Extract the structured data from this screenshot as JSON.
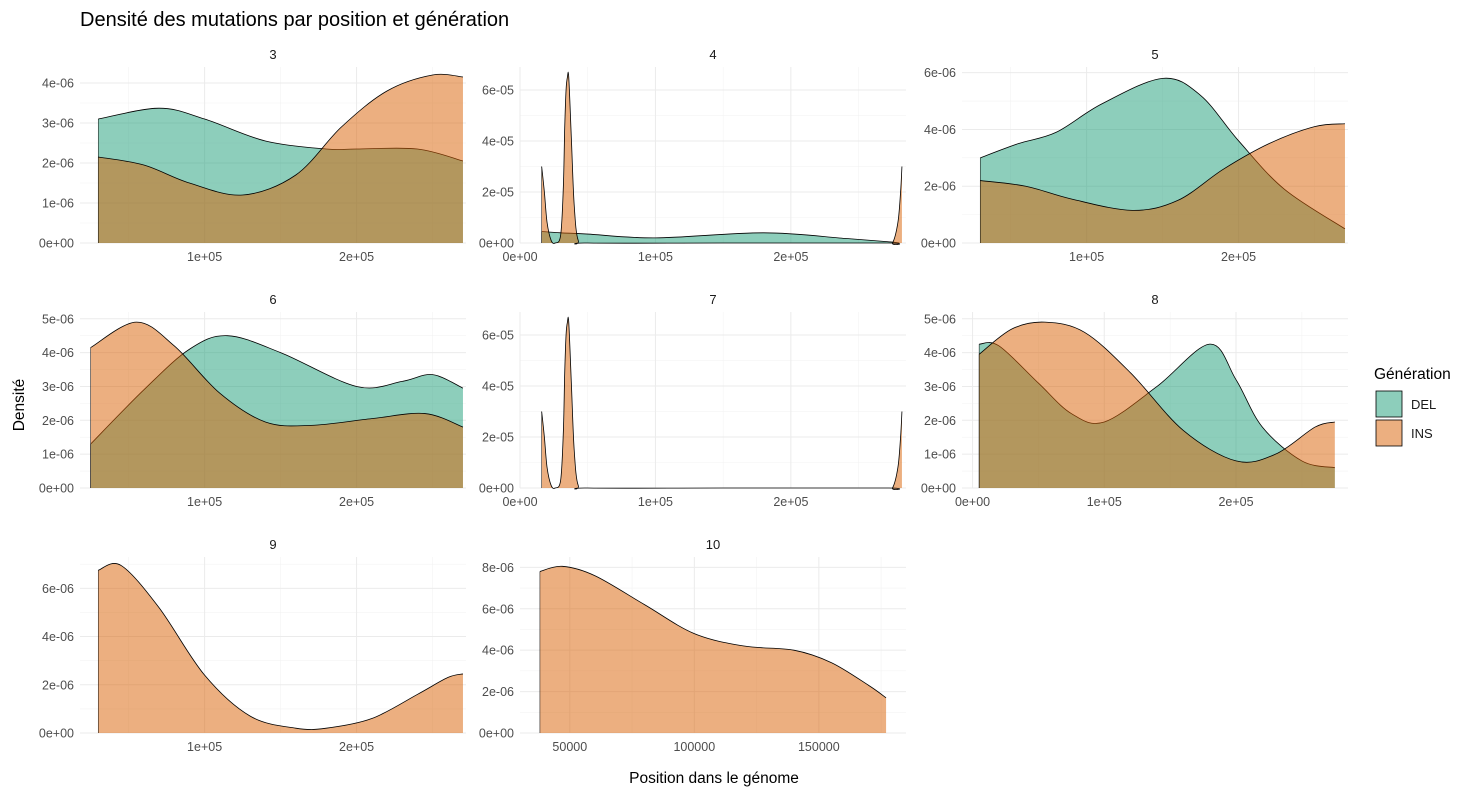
{
  "chart_data": {
    "type": "area",
    "subtype": "faceted density plot",
    "title": "Densité des mutations par position et génération",
    "xlabel": "Position dans le génome",
    "ylabel": "Densité",
    "legend": {
      "title": "Génération",
      "position": "right",
      "entries": [
        {
          "label": "DEL",
          "color": "#1b9e77"
        },
        {
          "label": "INS",
          "color": "#d95f02"
        }
      ]
    },
    "fill_opacity": 0.5,
    "colors": {
      "DEL": "#1b9e77",
      "INS": "#d95f02",
      "outline": "#000000",
      "grid": "#ebebeb"
    },
    "facets": [
      {
        "label": "3",
        "xlim": [
          18000,
          272000
        ],
        "ylim": [
          0,
          4.4e-06
        ],
        "x_ticks": [
          {
            "v": 100000,
            "label": "1e+05"
          },
          {
            "v": 200000,
            "label": "2e+05"
          }
        ],
        "y_ticks": [
          {
            "v": 0,
            "label": "0e+00"
          },
          {
            "v": 1e-06,
            "label": "1e-06"
          },
          {
            "v": 2e-06,
            "label": "2e-06"
          },
          {
            "v": 3e-06,
            "label": "3e-06"
          },
          {
            "v": 4e-06,
            "label": "4e-06"
          }
        ],
        "show_x_ticks": true,
        "series": [
          {
            "name": "DEL",
            "x": [
              30000,
              70000,
              100000,
              140000,
              180000,
              200000,
              240000,
              270000
            ],
            "y": [
              3.1e-06,
              3.37e-06,
              3.1e-06,
              2.55e-06,
              2.35e-06,
              2.35e-06,
              2.35e-06,
              2.05e-06
            ]
          },
          {
            "name": "INS",
            "x": [
              30000,
              60000,
              90000,
              125000,
              160000,
              190000,
              220000,
              250000,
              270000
            ],
            "y": [
              2.15e-06,
              1.95e-06,
              1.5e-06,
              1.2e-06,
              1.7e-06,
              2.9e-06,
              3.8e-06,
              4.2e-06,
              4.15e-06
            ]
          }
        ]
      },
      {
        "label": "4",
        "xlim": [
          0,
          285000
        ],
        "ylim": [
          0,
          6.9e-05
        ],
        "x_ticks": [
          {
            "v": 0,
            "label": "0e+00"
          },
          {
            "v": 100000,
            "label": "1e+05"
          },
          {
            "v": 200000,
            "label": "2e+05"
          }
        ],
        "y_ticks": [
          {
            "v": 0,
            "label": "0e+00"
          },
          {
            "v": 2e-05,
            "label": "2e-05"
          },
          {
            "v": 4e-05,
            "label": "4e-05"
          },
          {
            "v": 6e-05,
            "label": "6e-05"
          }
        ],
        "show_x_ticks": true,
        "series": [
          {
            "name": "DEL",
            "x": [
              16000,
              30000,
              50000,
              100000,
              180000,
              240000,
              272000,
              280000
            ],
            "y": [
              4.5e-06,
              4e-06,
              3.5e-06,
              2e-06,
              4e-06,
              1.8e-06,
              5e-07,
              0
            ]
          },
          {
            "name": "INS",
            "x": [
              16000,
              18000,
              20000,
              23000,
              26000,
              30000,
              32000,
              33000,
              34000,
              35000,
              36000,
              38000,
              40000,
              43000,
              50000,
              150000,
              270000,
              275000,
              279000,
              281000,
              282000
            ],
            "y": [
              3e-05,
              2e-05,
              8e-06,
              1e-06,
              0,
              3e-06,
              2.2e-05,
              4.5e-05,
              6e-05,
              6.5e-05,
              6.5e-05,
              4e-05,
              1.5e-05,
              1e-06,
              0,
              0,
              0,
              0,
              8e-06,
              2e-05,
              3e-05
            ]
          }
        ]
      },
      {
        "label": "5",
        "xlim": [
          18000,
          272000
        ],
        "ylim": [
          0,
          6.2e-06
        ],
        "x_ticks": [
          {
            "v": 100000,
            "label": "1e+05"
          },
          {
            "v": 200000,
            "label": "2e+05"
          }
        ],
        "y_ticks": [
          {
            "v": 0,
            "label": "0e+00"
          },
          {
            "v": 2e-06,
            "label": "2e-06"
          },
          {
            "v": 4e-06,
            "label": "4e-06"
          },
          {
            "v": 6e-06,
            "label": "6e-06"
          }
        ],
        "show_x_ticks": true,
        "series": [
          {
            "name": "DEL",
            "x": [
              30000,
              55000,
              80000,
              110000,
              150000,
              175000,
              200000,
              230000,
              270000
            ],
            "y": [
              3e-06,
              3.5e-06,
              3.9e-06,
              4.9e-06,
              5.8e-06,
              5.2e-06,
              3.6e-06,
              1.9e-06,
              5e-07
            ]
          },
          {
            "name": "INS",
            "x": [
              30000,
              60000,
              90000,
              130000,
              160000,
              190000,
              220000,
              250000,
              270000
            ],
            "y": [
              2.2e-06,
              2e-06,
              1.55e-06,
              1.15e-06,
              1.5e-06,
              2.6e-06,
              3.5e-06,
              4.1e-06,
              4.2e-06
            ]
          }
        ]
      },
      {
        "label": "6",
        "xlim": [
          18000,
          272000
        ],
        "ylim": [
          0,
          5.2e-06
        ],
        "x_ticks": [
          {
            "v": 100000,
            "label": "1e+05"
          },
          {
            "v": 200000,
            "label": "2e+05"
          }
        ],
        "y_ticks": [
          {
            "v": 0,
            "label": "0e+00"
          },
          {
            "v": 1e-06,
            "label": "1e-06"
          },
          {
            "v": 2e-06,
            "label": "2e-06"
          },
          {
            "v": 3e-06,
            "label": "3e-06"
          },
          {
            "v": 4e-06,
            "label": "4e-06"
          },
          {
            "v": 5e-06,
            "label": "5e-06"
          }
        ],
        "show_x_ticks": true,
        "series": [
          {
            "name": "DEL",
            "x": [
              25000,
              60000,
              90000,
              115000,
              150000,
              200000,
              230000,
              250000,
              270000
            ],
            "y": [
              1.3e-06,
              2.9e-06,
              4.1e-06,
              4.5e-06,
              4e-06,
              3e-06,
              3.15e-06,
              3.35e-06,
              2.95e-06
            ]
          },
          {
            "name": "INS",
            "x": [
              25000,
              55000,
              80000,
              110000,
              140000,
              170000,
              210000,
              245000,
              270000
            ],
            "y": [
              4.15e-06,
              4.9e-06,
              4.2e-06,
              2.8e-06,
              1.95e-06,
              1.85e-06,
              2.05e-06,
              2.2e-06,
              1.8e-06
            ]
          }
        ]
      },
      {
        "label": "7",
        "xlim": [
          0,
          285000
        ],
        "ylim": [
          0,
          6.9e-05
        ],
        "x_ticks": [
          {
            "v": 0,
            "label": "0e+00"
          },
          {
            "v": 100000,
            "label": "1e+05"
          },
          {
            "v": 200000,
            "label": "2e+05"
          }
        ],
        "y_ticks": [
          {
            "v": 0,
            "label": "0e+00"
          },
          {
            "v": 2e-05,
            "label": "2e-05"
          },
          {
            "v": 4e-05,
            "label": "4e-05"
          },
          {
            "v": 6e-05,
            "label": "6e-05"
          }
        ],
        "show_x_ticks": true,
        "series": [
          {
            "name": "INS",
            "x": [
              16000,
              18000,
              20000,
              23000,
              26000,
              30000,
              32000,
              33000,
              34000,
              35000,
              36000,
              38000,
              40000,
              43000,
              50000,
              150000,
              270000,
              275000,
              279000,
              281000,
              282000
            ],
            "y": [
              3e-05,
              2e-05,
              8e-06,
              1e-06,
              0,
              3e-06,
              2.2e-05,
              4.5e-05,
              6e-05,
              6.5e-05,
              6.5e-05,
              4e-05,
              1.5e-05,
              1e-06,
              0,
              0,
              0,
              0,
              8e-06,
              2e-05,
              3e-05
            ]
          }
        ]
      },
      {
        "label": "8",
        "xlim": [
          -8000,
          285000
        ],
        "ylim": [
          0,
          5.2e-06
        ],
        "x_ticks": [
          {
            "v": 0,
            "label": "0e+00"
          },
          {
            "v": 100000,
            "label": "1e+05"
          },
          {
            "v": 200000,
            "label": "2e+05"
          }
        ],
        "y_ticks": [
          {
            "v": 0,
            "label": "0e+00"
          },
          {
            "v": 1e-06,
            "label": "1e-06"
          },
          {
            "v": 2e-06,
            "label": "2e-06"
          },
          {
            "v": 3e-06,
            "label": "3e-06"
          },
          {
            "v": 4e-06,
            "label": "4e-06"
          },
          {
            "v": 5e-06,
            "label": "5e-06"
          }
        ],
        "show_x_ticks": true,
        "series": [
          {
            "name": "DEL",
            "x": [
              5000,
              20000,
              50000,
              75000,
              100000,
              140000,
              180000,
              200000,
              220000,
              250000,
              275000
            ],
            "y": [
              4.25e-06,
              4.2e-06,
              3.1e-06,
              2.2e-06,
              1.95e-06,
              3e-06,
              4.25e-06,
              3.2e-06,
              1.8e-06,
              8e-07,
              6e-07
            ]
          },
          {
            "name": "INS",
            "x": [
              5000,
              30000,
              55000,
              85000,
              120000,
              160000,
              200000,
              230000,
              260000,
              275000
            ],
            "y": [
              3.95e-06,
              4.7e-06,
              4.9e-06,
              4.6e-06,
              3.4e-06,
              1.7e-06,
              8e-07,
              1e-06,
              1.8e-06,
              1.95e-06
            ]
          }
        ]
      },
      {
        "label": "9",
        "xlim": [
          18000,
          272000
        ],
        "ylim": [
          0,
          7.3e-06
        ],
        "x_ticks": [
          {
            "v": 100000,
            "label": "1e+05"
          },
          {
            "v": 200000,
            "label": "2e+05"
          }
        ],
        "y_ticks": [
          {
            "v": 0,
            "label": "0e+00"
          },
          {
            "v": 2e-06,
            "label": "2e-06"
          },
          {
            "v": 4e-06,
            "label": "4e-06"
          },
          {
            "v": 6e-06,
            "label": "6e-06"
          }
        ],
        "show_x_ticks": true,
        "series": [
          {
            "name": "INS",
            "x": [
              30000,
              45000,
              70000,
              100000,
              130000,
              160000,
              180000,
              210000,
              240000,
              260000,
              270000
            ],
            "y": [
              6.75e-06,
              6.95e-06,
              5.2e-06,
              2.4e-06,
              7e-07,
              2e-07,
              2e-07,
              6e-07,
              1.6e-06,
              2.3e-06,
              2.45e-06
            ]
          }
        ]
      },
      {
        "label": "10",
        "xlim": [
          30000,
          185000
        ],
        "ylim": [
          0,
          8.5e-06
        ],
        "x_ticks": [
          {
            "v": 50000,
            "label": "50000"
          },
          {
            "v": 100000,
            "label": "100000"
          },
          {
            "v": 150000,
            "label": "150000"
          }
        ],
        "y_ticks": [
          {
            "v": 0,
            "label": "0e+00"
          },
          {
            "v": 2e-06,
            "label": "2e-06"
          },
          {
            "v": 4e-06,
            "label": "4e-06"
          },
          {
            "v": 6e-06,
            "label": "6e-06"
          },
          {
            "v": 8e-06,
            "label": "8e-06"
          }
        ],
        "show_x_ticks": true,
        "series": [
          {
            "name": "INS",
            "x": [
              38000,
              47000,
              60000,
              80000,
              100000,
              120000,
              140000,
              155000,
              170000,
              177000
            ],
            "y": [
              7.8e-06,
              8.05e-06,
              7.6e-06,
              6.2e-06,
              4.8e-06,
              4.2e-06,
              4e-06,
              3.4e-06,
              2.3e-06,
              1.7e-06
            ]
          }
        ]
      }
    ]
  }
}
